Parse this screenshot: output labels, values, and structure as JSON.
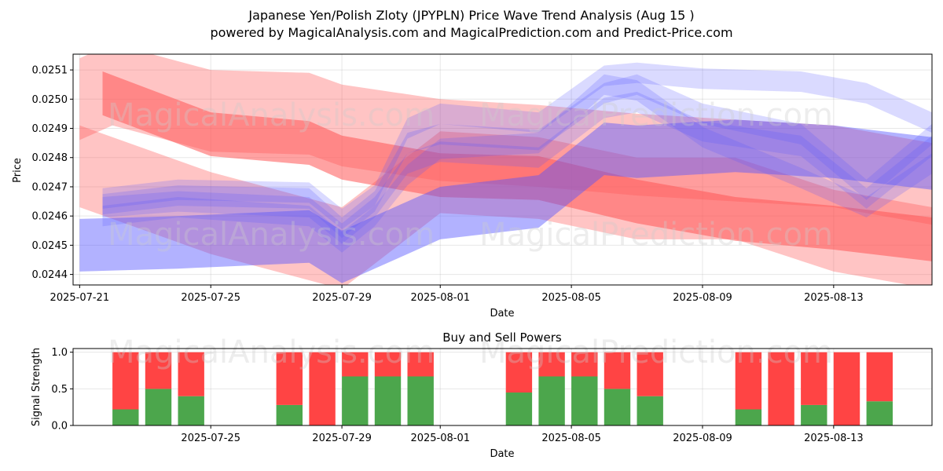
{
  "header": {
    "title": "Japanese Yen/Polish Zloty (JPYPLN) Price Wave Trend Analysis (Aug 15 )",
    "subtitle": "powered by MagicalAnalysis.com and MagicalPrediction.com and Predict-Price.com"
  },
  "watermarks": [
    "MagicalAnalysis.com",
    "MagicalPrediction.com"
  ],
  "colors": {
    "buy": "#4ca64c",
    "sell": "#ff4444",
    "blue_band": "#5555ff",
    "red_band": "#ff5555"
  },
  "chart_data": [
    {
      "type": "area",
      "title": "",
      "xlabel": "Date",
      "ylabel": "Price",
      "x_tick_labels": [
        "2025-07-21",
        "2025-07-25",
        "2025-07-29",
        "2025-08-01",
        "2025-08-05",
        "2025-08-09",
        "2025-08-13"
      ],
      "x_tick_days": [
        0,
        4,
        8,
        11,
        15,
        19,
        23
      ],
      "xlim_days": [
        -0.2,
        26.0
      ],
      "y_tick_labels": [
        "0.0244",
        "0.0245",
        "0.0246",
        "0.0247",
        "0.0248",
        "0.0249",
        "0.0250",
        "0.0251"
      ],
      "y_ticks": [
        0.0244,
        0.0245,
        0.0246,
        0.0247,
        0.0248,
        0.0249,
        0.025,
        0.0251
      ],
      "ylim": [
        0.024364,
        0.025154
      ],
      "series": [
        {
          "name": "red-band-upper",
          "color": "red",
          "opacity": 0.35,
          "x": [
            0,
            1,
            4,
            7,
            8,
            11,
            14,
            17,
            20,
            23,
            26
          ],
          "center": [
            0.025,
            0.02505,
            0.02496,
            0.02495,
            0.02491,
            0.02486,
            0.02484,
            0.02481,
            0.02479,
            0.02477,
            0.02471
          ],
          "width": [
            0.00028,
            0.00028,
            0.00028,
            0.00028,
            0.00028,
            0.00028,
            0.00028,
            0.00028,
            0.00028,
            0.00028,
            0.00028
          ]
        },
        {
          "name": "red-band-lower",
          "color": "red",
          "opacity": 0.35,
          "x": [
            0,
            4,
            8,
            11,
            14,
            17,
            20,
            23,
            26
          ],
          "center": [
            0.02477,
            0.02461,
            0.02449,
            0.02475,
            0.02473,
            0.02466,
            0.02466,
            0.02455,
            0.02449
          ],
          "width": [
            0.00028,
            0.00028,
            0.00028,
            0.00028,
            0.00028,
            0.00028,
            0.00028,
            0.00028,
            0.00028
          ]
        },
        {
          "name": "red-band-main",
          "color": "red",
          "opacity": 0.55,
          "x": [
            0.7,
            4,
            7,
            8,
            11,
            14,
            17,
            20,
            23,
            26
          ],
          "center": [
            0.02502,
            0.02488,
            0.02485,
            0.0248,
            0.02474,
            0.02473,
            0.02465,
            0.02459,
            0.02456,
            0.02452
          ],
          "width": [
            0.00015,
            0.00015,
            0.00015,
            0.00015,
            0.00015,
            0.00015,
            0.00015,
            0.00015,
            0.00015,
            0.00015
          ]
        },
        {
          "name": "blue-band-long",
          "color": "blue",
          "opacity": 0.45,
          "x": [
            0,
            3,
            7,
            8,
            10,
            11,
            14,
            16,
            17,
            20,
            23,
            26
          ],
          "center": [
            0.0245,
            0.02451,
            0.02453,
            0.02446,
            0.02456,
            0.02461,
            0.02465,
            0.02483,
            0.02482,
            0.02484,
            0.02482,
            0.02478
          ],
          "width": [
            0.00018,
            0.00018,
            0.00018,
            0.00018,
            0.00018,
            0.00018,
            0.00018,
            0.00018,
            0.00018,
            0.00018,
            0.00018,
            0.00018
          ]
        },
        {
          "name": "blue-band-a",
          "color": "blue",
          "opacity": 0.22,
          "x": [
            0.7,
            3,
            7,
            8,
            9,
            10,
            11,
            14,
            16,
            17,
            19,
            22,
            24,
            26
          ],
          "center": [
            0.02466,
            0.02469,
            0.02468,
            0.02459,
            0.02467,
            0.0249,
            0.02495,
            0.02492,
            0.02508,
            0.02509,
            0.02507,
            0.02506,
            0.02502,
            0.02492
          ],
          "width": [
            7e-05,
            7e-05,
            7e-05,
            7e-05,
            7e-05,
            7e-05,
            7e-05,
            7e-05,
            7e-05,
            7e-05,
            7e-05,
            7e-05,
            7e-05,
            7e-05
          ]
        },
        {
          "name": "blue-band-b",
          "color": "blue",
          "opacity": 0.22,
          "x": [
            0.7,
            3,
            7,
            8,
            9,
            10,
            11,
            14,
            16,
            17,
            19,
            22,
            24,
            26
          ],
          "center": [
            0.02463,
            0.02465,
            0.02463,
            0.02454,
            0.02463,
            0.02478,
            0.02482,
            0.0248,
            0.02497,
            0.02499,
            0.02489,
            0.02484,
            0.02466,
            0.02484
          ],
          "width": [
            7e-05,
            7e-05,
            7e-05,
            7e-05,
            7e-05,
            7e-05,
            7e-05,
            7e-05,
            7e-05,
            7e-05,
            7e-05,
            7e-05,
            7e-05,
            7e-05
          ]
        },
        {
          "name": "blue-band-c",
          "color": "blue",
          "opacity": 0.22,
          "x": [
            0.7,
            3,
            7,
            8,
            9,
            10,
            11,
            14,
            16,
            17,
            19,
            22,
            24,
            26
          ],
          "center": [
            0.0246,
            0.02463,
            0.0246,
            0.02451,
            0.0246,
            0.02474,
            0.02483,
            0.02485,
            0.02505,
            0.02503,
            0.02487,
            0.02473,
            0.02463,
            0.02478
          ],
          "width": [
            7e-05,
            7e-05,
            7e-05,
            7e-05,
            7e-05,
            7e-05,
            7e-05,
            7e-05,
            7e-05,
            7e-05,
            7e-05,
            7e-05,
            7e-05,
            7e-05
          ]
        },
        {
          "name": "blue-band-d",
          "color": "blue",
          "opacity": 0.22,
          "x": [
            0.7,
            3,
            7,
            8,
            9,
            10,
            11,
            14,
            16,
            17,
            19,
            22,
            24,
            26
          ],
          "center": [
            0.02464,
            0.02467,
            0.02466,
            0.02456,
            0.02465,
            0.02485,
            0.02488,
            0.02486,
            0.02502,
            0.02505,
            0.02495,
            0.02488,
            0.02469,
            0.02488
          ],
          "width": [
            7e-05,
            7e-05,
            7e-05,
            7e-05,
            7e-05,
            7e-05,
            7e-05,
            7e-05,
            7e-05,
            7e-05,
            7e-05,
            7e-05,
            7e-05,
            7e-05
          ]
        }
      ]
    },
    {
      "type": "bar",
      "stacked": true,
      "title": "Buy and Sell Powers",
      "xlabel": "Date",
      "ylabel": "Signal Strength",
      "ylim": [
        0,
        1.05
      ],
      "y_tick_labels": [
        "0.0",
        "0.5",
        "1.0"
      ],
      "y_ticks": [
        0,
        0.5,
        1.0
      ],
      "x_tick_labels": [
        "2025-07-25",
        "2025-07-29",
        "2025-08-01",
        "2025-08-05",
        "2025-08-09",
        "2025-08-13"
      ],
      "x_tick_days": [
        4,
        8,
        11,
        15,
        19,
        23
      ],
      "xlim_days": [
        -0.2,
        26.0
      ],
      "bar_days": [
        1.4,
        2.4,
        3.4,
        6.4,
        7.4,
        8.4,
        9.4,
        10.4,
        13.4,
        14.4,
        15.4,
        16.4,
        17.4,
        20.4,
        21.4,
        22.4,
        23.4,
        24.4
      ],
      "series": [
        {
          "name": "Buy",
          "color": "#4ca64c",
          "values": [
            0.22,
            0.5,
            0.4,
            0.28,
            0.0,
            0.67,
            0.67,
            0.67,
            0.45,
            0.67,
            0.67,
            0.5,
            0.4,
            0.22,
            0.0,
            0.28,
            0.0,
            0.33
          ]
        },
        {
          "name": "Sell",
          "color": "#ff4444",
          "values": [
            0.78,
            0.5,
            0.6,
            0.72,
            1.0,
            0.33,
            0.33,
            0.33,
            0.55,
            0.33,
            0.33,
            0.5,
            0.6,
            0.78,
            1.0,
            0.72,
            1.0,
            0.67
          ]
        }
      ]
    }
  ]
}
